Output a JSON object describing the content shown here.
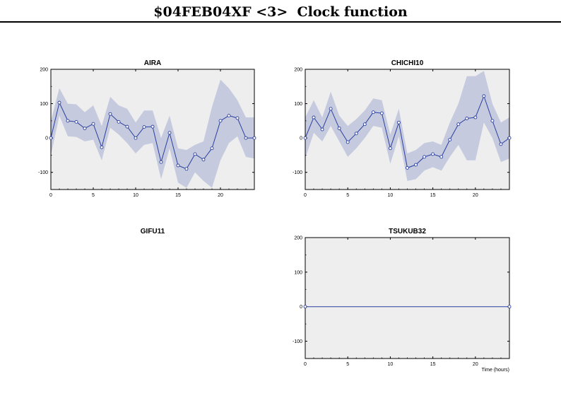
{
  "page": {
    "title": "$04FEB04XF <3>  Clock function"
  },
  "colors": {
    "line": "#2a3f9e",
    "band": "#c5cadf",
    "plot_bg": "#eeeeee"
  },
  "chart_data": [
    {
      "type": "line",
      "title": "AIRA",
      "xlim": [
        0,
        24
      ],
      "ylim": [
        -150,
        200
      ],
      "xticks": [
        "0",
        "5",
        "10",
        "15",
        "20"
      ],
      "yticks": [
        "200",
        "100",
        "0",
        "-100"
      ],
      "xlabel": "",
      "x": [
        0,
        1,
        2,
        3,
        4,
        5,
        6,
        7,
        8,
        9,
        10,
        11,
        12,
        13,
        14,
        15,
        16,
        17,
        18,
        19,
        20,
        21,
        22,
        23,
        24
      ],
      "values": [
        0,
        103,
        50,
        47,
        28,
        41,
        -27,
        70,
        47,
        33,
        0,
        32,
        33,
        -70,
        15,
        -80,
        -90,
        -47,
        -63,
        -30,
        50,
        65,
        58,
        0,
        0
      ],
      "band_upper": [
        50,
        145,
        100,
        98,
        75,
        95,
        35,
        120,
        95,
        85,
        45,
        80,
        80,
        0,
        65,
        -30,
        -35,
        -20,
        -10,
        90,
        170,
        145,
        110,
        60,
        60
      ],
      "band_lower": [
        -50,
        65,
        5,
        3,
        -10,
        -5,
        -65,
        30,
        10,
        -15,
        -45,
        -20,
        -15,
        -120,
        -30,
        -130,
        -145,
        -100,
        -125,
        -145,
        -65,
        -15,
        5,
        -55,
        -60
      ]
    },
    {
      "type": "line",
      "title": "CHICHI10",
      "xlim": [
        0,
        24
      ],
      "ylim": [
        -150,
        200
      ],
      "xticks": [
        "0",
        "5",
        "10",
        "15",
        "20"
      ],
      "yticks": [
        "200",
        "100",
        "0",
        "-100"
      ],
      "xlabel": "",
      "x": [
        0,
        1,
        2,
        3,
        4,
        5,
        6,
        7,
        8,
        9,
        10,
        11,
        12,
        13,
        14,
        15,
        16,
        17,
        18,
        19,
        20,
        21,
        22,
        23,
        24
      ],
      "values": [
        0,
        60,
        25,
        85,
        28,
        -12,
        13,
        40,
        75,
        72,
        -30,
        45,
        -87,
        -78,
        -55,
        -47,
        -55,
        -5,
        40,
        57,
        60,
        122,
        50,
        -18,
        0
      ],
      "band_upper": [
        60,
        110,
        60,
        135,
        65,
        35,
        55,
        80,
        115,
        110,
        10,
        85,
        -45,
        -35,
        -15,
        -10,
        -20,
        45,
        100,
        180,
        180,
        195,
        100,
        45,
        60
      ],
      "band_lower": [
        -60,
        15,
        -10,
        35,
        -10,
        -55,
        -30,
        0,
        35,
        30,
        -75,
        5,
        -125,
        -120,
        -95,
        -85,
        -95,
        -55,
        -20,
        -65,
        -65,
        45,
        0,
        -70,
        -60
      ]
    },
    {
      "type": "line",
      "title": "GIFU11",
      "xlim": [
        0,
        24
      ],
      "ylim": [
        -150,
        200
      ],
      "xticks": [],
      "yticks": [],
      "xlabel": "",
      "x": [],
      "values": [],
      "band_upper": [],
      "band_lower": [],
      "empty": true
    },
    {
      "type": "line",
      "title": "TSUKUB32",
      "xlim": [
        0,
        24
      ],
      "ylim": [
        -150,
        200
      ],
      "xticks": [
        "0",
        "5",
        "10",
        "15",
        "20"
      ],
      "yticks": [
        "200",
        "100",
        "0",
        "-100"
      ],
      "xlabel": "Time (hours)",
      "x": [
        0,
        24
      ],
      "values": [
        0,
        0
      ],
      "band_upper": [],
      "band_lower": []
    }
  ]
}
